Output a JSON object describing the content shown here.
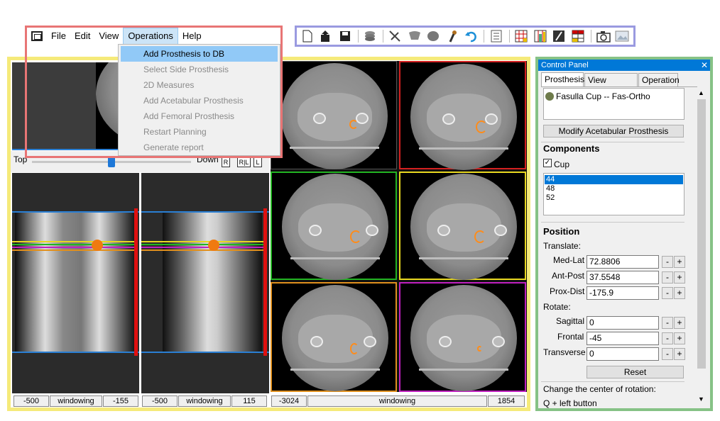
{
  "menubar": {
    "items": [
      "File",
      "Edit",
      "View",
      "Operations",
      "Help"
    ],
    "active": "Operations"
  },
  "operations_menu": {
    "items": [
      {
        "label": "Add Prosthesis to DB",
        "enabled": true
      },
      {
        "label": "Select Side Prosthesis",
        "enabled": false
      },
      {
        "label": "2D Measures",
        "enabled": false
      },
      {
        "label": "Add Acetabular Prosthesis",
        "enabled": false
      },
      {
        "label": "Add Femoral Prosthesis",
        "enabled": false
      },
      {
        "label": "Restart Planning",
        "enabled": false
      },
      {
        "label": "Generate report",
        "enabled": false
      }
    ]
  },
  "toolbar": {
    "icons": [
      "new-file-icon",
      "open-icon",
      "save-icon",
      "stack-icon",
      "measure-icon",
      "pelvis-icon",
      "femoral-head-icon",
      "femoral-stem-icon",
      "undo-icon",
      "checklist-icon",
      "layout-grid-icon",
      "layout-columns-icon",
      "layout-split-icon",
      "layout-table-icon",
      "camera-icon",
      "image-icon"
    ]
  },
  "viewer": {
    "slider": {
      "left_label": "Top",
      "right_label": "Down",
      "position": 0.5
    },
    "orient_buttons": [
      "R",
      "R|L",
      "L"
    ],
    "left_status": {
      "min": "-500",
      "label": "windowing",
      "max": "-155"
    },
    "mid_status": {
      "min": "-500",
      "label": "windowing",
      "max": "115"
    },
    "right_status": {
      "min": "-3024",
      "label": "windowing",
      "max": "1854"
    },
    "colors": {
      "red": "#d42020",
      "green": "#22b422",
      "yellow": "#e8d820",
      "orange": "#e0901e",
      "magenta": "#c020c0",
      "blue": "#2a7fd4"
    }
  },
  "control_panel": {
    "title": "Control Panel",
    "close_label": "✕",
    "tabs": [
      "Prosthesis",
      "View settings",
      "Operation"
    ],
    "active_tab": "Prosthesis",
    "prosthesis_item": "Fasulla Cup -- Fas-Ortho",
    "modify_button": "Modify Acetabular Prosthesis",
    "components": {
      "heading": "Components",
      "checkbox_label": "Cup",
      "checked": true,
      "sizes": [
        "44",
        "48",
        "52"
      ],
      "selected_size": "44"
    },
    "position": {
      "heading": "Position",
      "translate_label": "Translate:",
      "rotate_label": "Rotate:",
      "fields": [
        {
          "label": "Med-Lat",
          "value": "72.8806"
        },
        {
          "label": "Ant-Post",
          "value": "37.5548"
        },
        {
          "label": "Prox-Dist",
          "value": "-175.9"
        },
        {
          "label": "Sagittal",
          "value": "0"
        },
        {
          "label": "Frontal",
          "value": "-45"
        },
        {
          "label": "Transverse",
          "value": "0"
        }
      ],
      "minus": "-",
      "plus": "+",
      "reset_button": "Reset",
      "center_label": "Change the center of rotation:",
      "center_hint": "Q + left button"
    }
  }
}
